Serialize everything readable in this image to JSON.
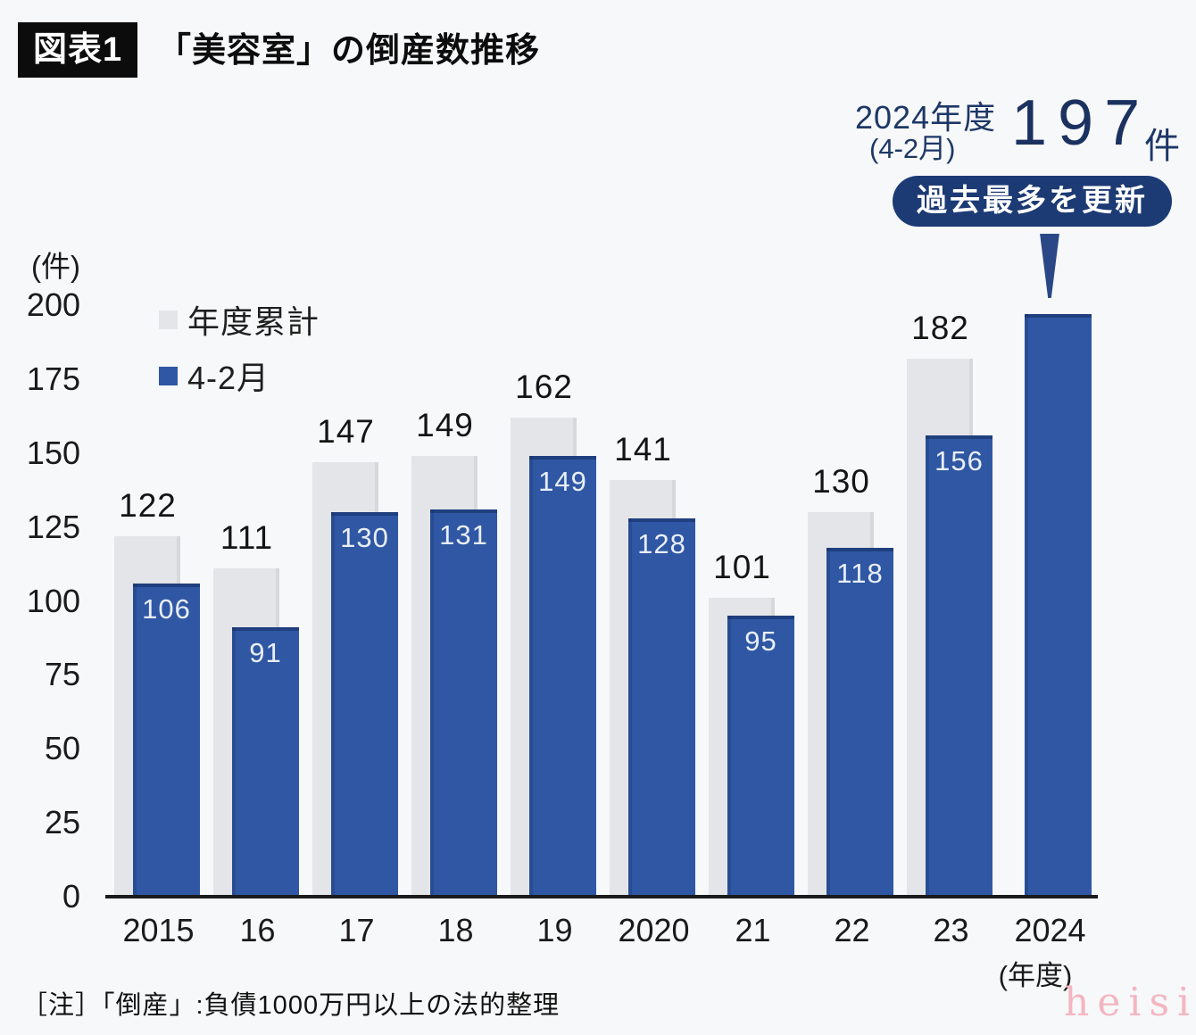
{
  "header": {
    "tag": "図表1",
    "title": "「美容室」の倒産数推移"
  },
  "annotation": {
    "year_label": "2024年度",
    "period_label": "(4-2月)",
    "value": "197",
    "unit": "件",
    "badge": "過去最多を更新"
  },
  "y_axis": {
    "unit_label": "(件)",
    "ticks": [
      0,
      25,
      50,
      75,
      100,
      125,
      150,
      175,
      200
    ]
  },
  "x_axis": {
    "unit_note": "(年度)"
  },
  "legend": [
    {
      "label": "年度累計",
      "color": "#e3e5e8"
    },
    {
      "label": "4-2月",
      "color": "#2f57a4"
    }
  ],
  "chart_data": {
    "type": "bar",
    "title": "「美容室」の倒産数推移",
    "categories": [
      "2015",
      "16",
      "17",
      "18",
      "19",
      "2020",
      "21",
      "22",
      "23",
      "2024"
    ],
    "series": [
      {
        "name": "年度累計",
        "color": "#e3e5e8",
        "values": [
          122,
          111,
          147,
          149,
          162,
          141,
          101,
          130,
          182,
          null
        ]
      },
      {
        "name": "4-2月",
        "color": "#2f57a4",
        "values": [
          106,
          91,
          130,
          131,
          149,
          128,
          95,
          118,
          156,
          197
        ]
      }
    ],
    "ylabel": "(件)",
    "ylim": [
      0,
      200
    ],
    "y_tick_step": 25,
    "grid": false,
    "legend_position": "upper-left",
    "annotated_category": "2024",
    "annotated_value": 197
  },
  "note": "［注］「倒産」:負債1000万円以上の法的整理",
  "watermark": "heisi",
  "colors": {
    "bar_blue": "#2f57a4",
    "bar_gray": "#e3e5e8",
    "badge_navy": "#1c3a74",
    "pointer_navy": "#2a4886",
    "text_navy": "#1d3766",
    "baseline": "#1b1b1b",
    "background": "#f7f8fa",
    "watermark_pink": "#f3b6c1"
  }
}
